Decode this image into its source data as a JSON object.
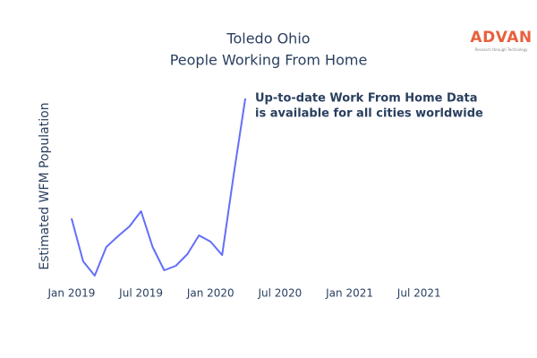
{
  "chart_data": {
    "type": "line",
    "title": [
      "Toledo Ohio",
      "People Working From Home"
    ],
    "y_axis_label": "Estimated WFM Population",
    "annotation": [
      "Up-to-date Work From Home Data",
      "is available for all cities worldwide"
    ],
    "logo": {
      "name": "ADVAN",
      "tagline": "Research through Technology"
    },
    "x": [
      "2019-01",
      "2019-02",
      "2019-03",
      "2019-04",
      "2019-05",
      "2019-06",
      "2019-07",
      "2019-08",
      "2019-09",
      "2019-10",
      "2019-11",
      "2019-12",
      "2020-01",
      "2020-02",
      "2020-03",
      "2020-04"
    ],
    "series": [
      {
        "name": "Toledo Ohio",
        "color": "#636efa",
        "values": [
          71,
          23,
          7,
          39,
          51,
          62,
          79,
          39,
          13,
          18,
          31,
          52,
          45,
          30,
          120,
          205
        ]
      }
    ],
    "xlim": [
      "2018-12",
      "2021-11"
    ],
    "xticks": [
      {
        "value": "2019-01",
        "label": "Jan 2019"
      },
      {
        "value": "2019-07",
        "label": "Jul 2019"
      },
      {
        "value": "2020-01",
        "label": "Jan 2020"
      },
      {
        "value": "2020-07",
        "label": "Jul 2020"
      },
      {
        "value": "2021-01",
        "label": "Jan 2021"
      },
      {
        "value": "2021-07",
        "label": "Jul 2021"
      }
    ],
    "ylim": [
      0,
      215
    ],
    "grid": false
  }
}
